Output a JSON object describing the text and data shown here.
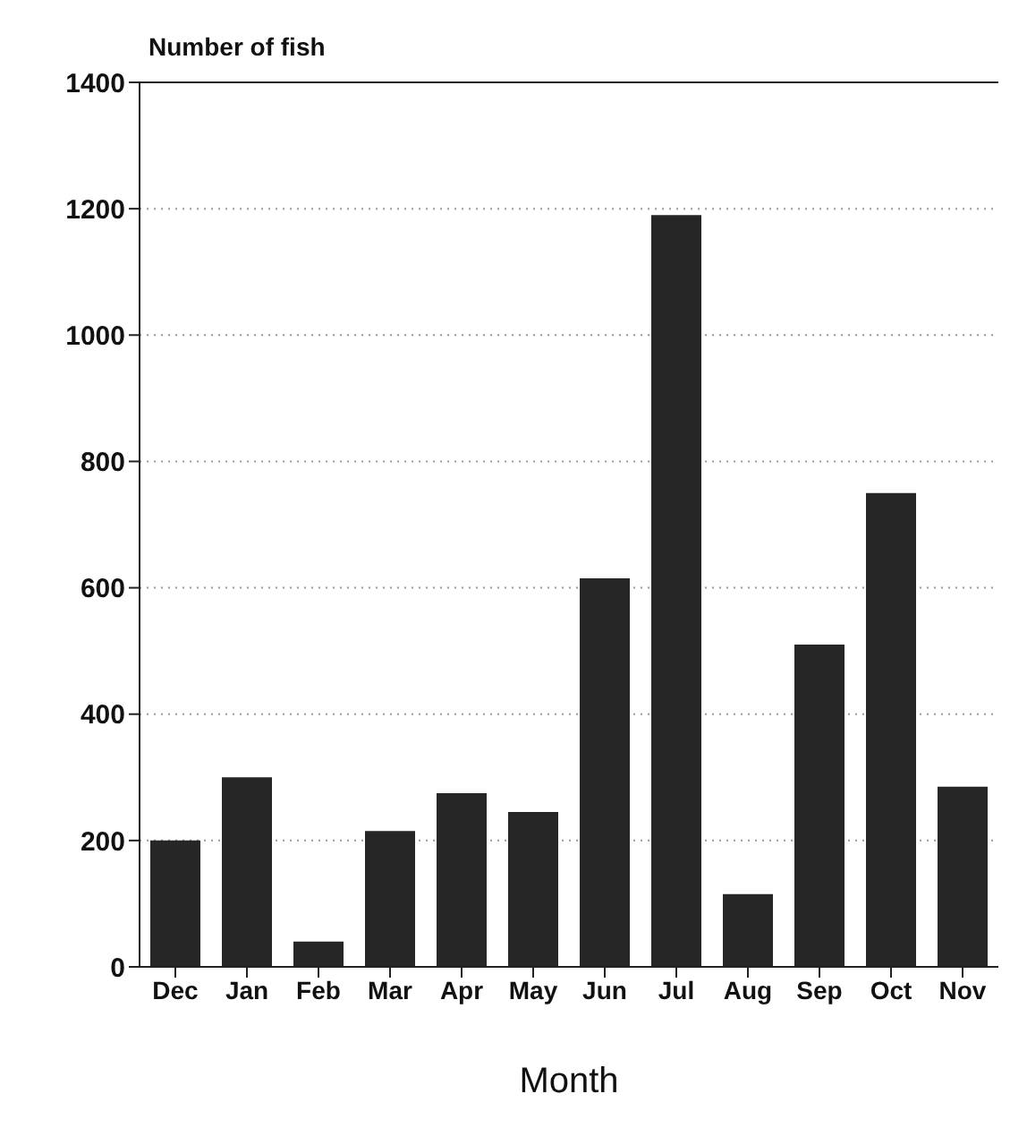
{
  "chart_data": {
    "type": "bar",
    "ylabel": "Number of fish",
    "xlabel": "Month",
    "categories": [
      "Dec",
      "Jan",
      "Feb",
      "Mar",
      "Apr",
      "May",
      "Jun",
      "Jul",
      "Aug",
      "Sep",
      "Oct",
      "Nov"
    ],
    "values": [
      200,
      300,
      40,
      215,
      275,
      245,
      615,
      1190,
      115,
      510,
      750,
      285
    ],
    "color": "#262626",
    "ylim": [
      0,
      1400
    ],
    "yticks": [
      0,
      200,
      400,
      600,
      800,
      1000,
      1200,
      1400
    ],
    "grid": "y"
  }
}
